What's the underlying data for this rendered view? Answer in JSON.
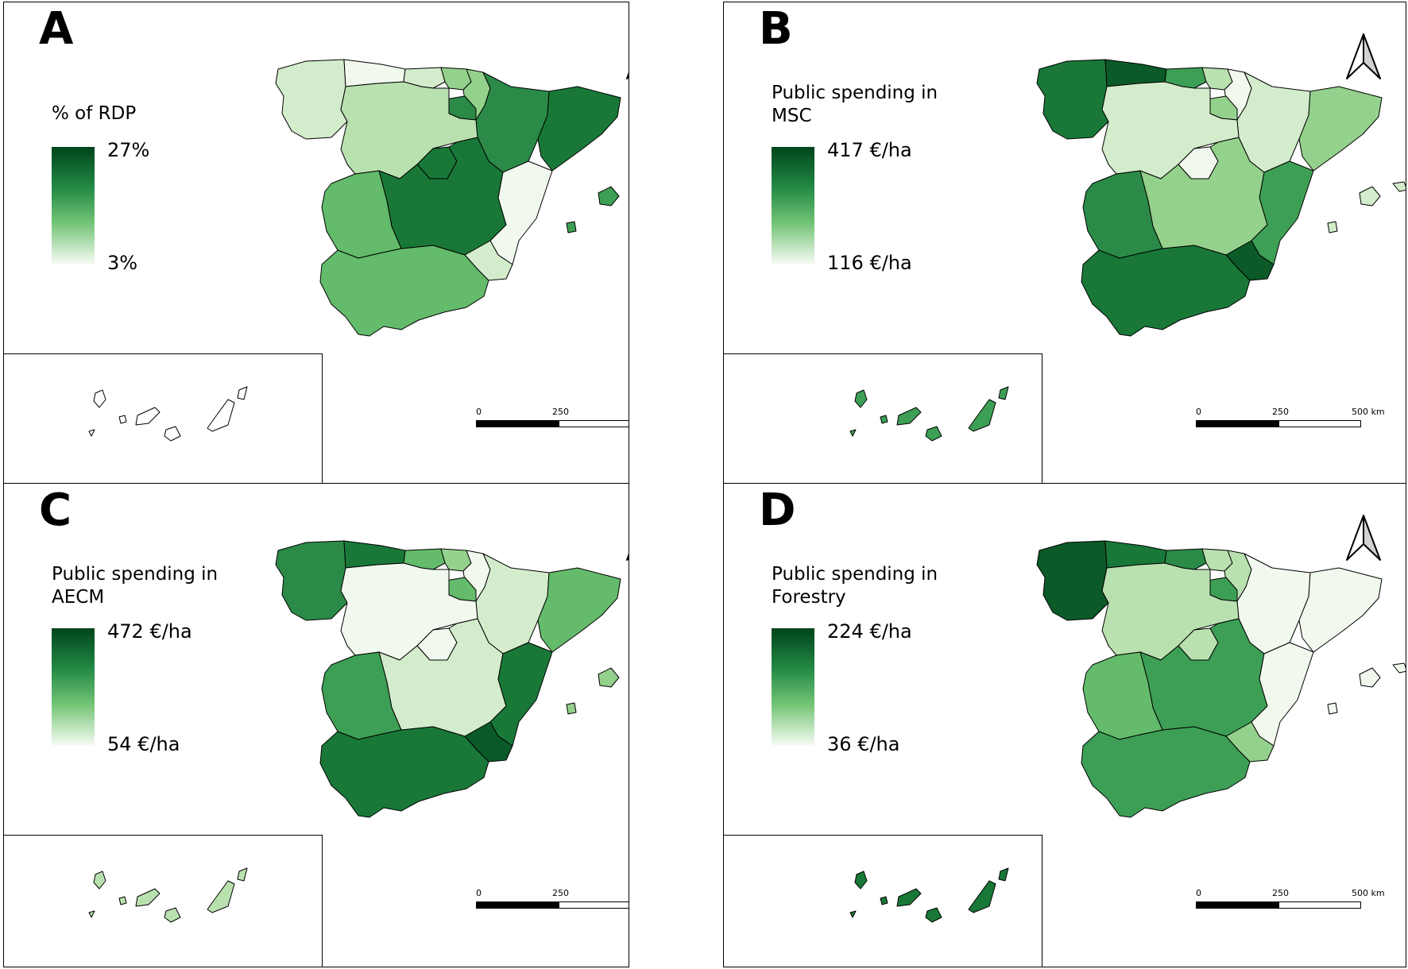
{
  "panels": [
    {
      "id": "A",
      "legend_title": "% of RDP",
      "legend_max": "27%",
      "legend_min": "3%"
    },
    {
      "id": "B",
      "legend_title": "Public spending in\nMSC",
      "legend_max": "417 €/ha",
      "legend_min": "116 €/ha"
    },
    {
      "id": "C",
      "legend_title": "Public spending in\nAECM",
      "legend_max": "472 €/ha",
      "legend_min": "54 €/ha"
    },
    {
      "id": "D",
      "legend_title": "Public spending in\nForestry",
      "legend_max": "224 €/ha",
      "legend_min": "36 €/ha"
    }
  ],
  "scale_bar": {
    "label_0": "0",
    "label_250": "250",
    "label_500": "500 km"
  },
  "colors": {
    "c1": "#f1f9ee",
    "c2": "#d3eccb",
    "c3": "#b9e1b0",
    "c4": "#94d18c",
    "c5": "#63bb6b",
    "c6": "#3d9f55",
    "c7": "#2b8a47",
    "c8": "#197838",
    "c9": "#0b5a28"
  },
  "region_shading": {
    "A": {
      "galicia": "c2",
      "asturias": "c1",
      "cantabria": "c2",
      "basque": "c4",
      "navarra": "c4",
      "rioja": "c7",
      "aragon": "c7",
      "catalonia": "c8",
      "castilla_leon": "c3",
      "madrid": "c8",
      "castilla_mancha": "c8",
      "valencia": "c1",
      "murcia": "c2",
      "extremadura": "c5",
      "andalusia": "c5",
      "balearics": "c6",
      "canarias": "c0"
    },
    "B": {
      "galicia": "c8",
      "asturias": "c9",
      "cantabria": "c6",
      "basque": "c3",
      "navarra": "c1",
      "rioja": "c4",
      "aragon": "c2",
      "catalonia": "c4",
      "castilla_leon": "c2",
      "madrid": "c1",
      "castilla_mancha": "c4",
      "valencia": "c6",
      "murcia": "c9",
      "extremadura": "c7",
      "andalusia": "c8",
      "balearics": "c2",
      "canarias": "c6"
    },
    "C": {
      "galicia": "c7",
      "asturias": "c8",
      "cantabria": "c5",
      "basque": "c4",
      "navarra": "c1",
      "rioja": "c5",
      "aragon": "c2",
      "catalonia": "c5",
      "castilla_leon": "c1",
      "madrid": "c1",
      "castilla_mancha": "c2",
      "valencia": "c8",
      "murcia": "c9",
      "extremadura": "c6",
      "andalusia": "c8",
      "balearics": "c4",
      "canarias": "c3"
    },
    "D": {
      "galicia": "c9",
      "asturias": "c8",
      "cantabria": "c7",
      "basque": "c3",
      "navarra": "c3",
      "rioja": "c6",
      "aragon": "c1",
      "catalonia": "c1",
      "castilla_leon": "c3",
      "madrid": "c3",
      "castilla_mancha": "c6",
      "valencia": "c1",
      "murcia": "c4",
      "extremadura": "c5",
      "andalusia": "c6",
      "balearics": "c1",
      "canarias": "c8"
    }
  }
}
